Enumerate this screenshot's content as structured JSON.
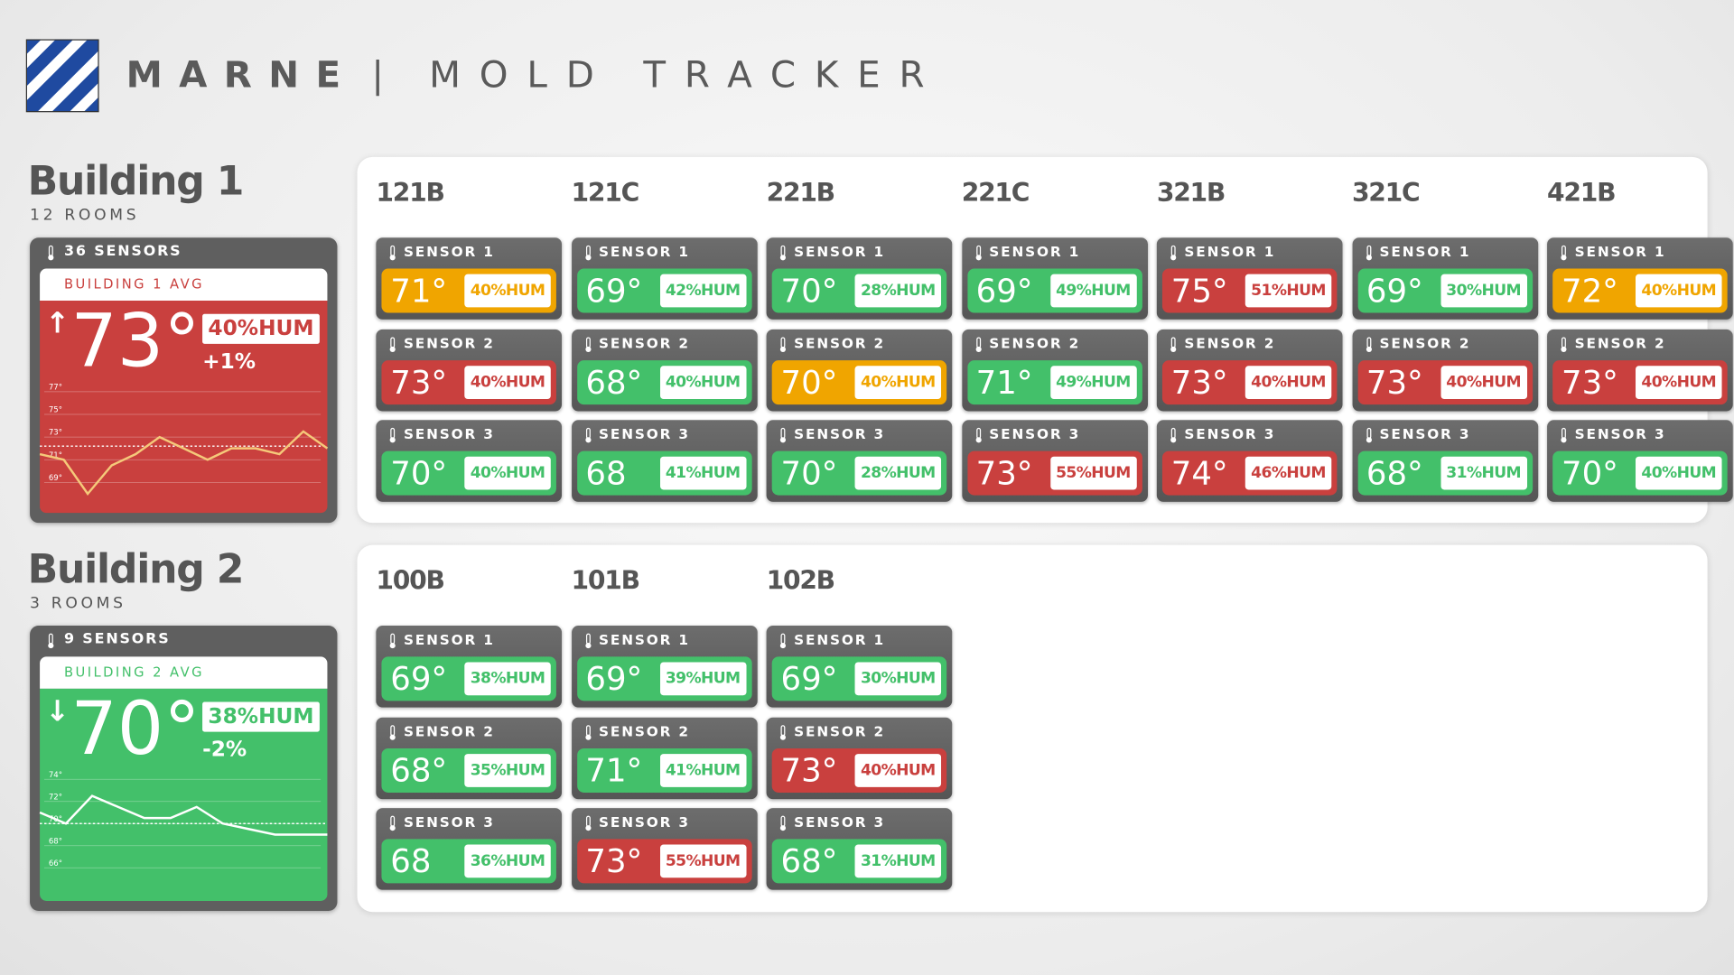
{
  "header": {
    "brand": "MARNE",
    "separator": "|",
    "title": "MOLD TRACKER"
  },
  "buildings": [
    {
      "name": "Building 1",
      "rooms_count": "12 ROOMS",
      "sensors_count": "36 SENSORS",
      "avg_label": "BUILDING 1 AVG",
      "color": "#c9403e",
      "arrow": "↑",
      "temp": "73°",
      "humidity": "40%HUM",
      "change": "+1%",
      "trend": {
        "ylim": [
          66.7,
          78.4
        ],
        "yticks": [
          {
            "value": 77,
            "label": "77°"
          },
          {
            "value": 75,
            "label": "75°"
          },
          {
            "value": 73,
            "label": "73°"
          },
          {
            "value": 71,
            "label": "71°"
          },
          {
            "value": 69,
            "label": "69°"
          }
        ],
        "reference": 72.2,
        "color": "#f5c97a",
        "values": [
          71.5,
          71,
          68,
          70.5,
          71.5,
          73,
          72,
          71,
          72,
          72,
          71.5,
          73.5,
          72
        ]
      },
      "rooms": [
        {
          "name": "121B",
          "sensors": [
            {
              "label": "SENSOR 1",
              "temp": "71°",
              "humidity": "40%HUM",
              "color": "#f0a500"
            },
            {
              "label": "SENSOR 2",
              "temp": "73°",
              "humidity": "40%HUM",
              "color": "#c9403e"
            },
            {
              "label": "SENSOR 3",
              "temp": "70°",
              "humidity": "40%HUM",
              "color": "#43c06a"
            }
          ]
        },
        {
          "name": "121C",
          "sensors": [
            {
              "label": "SENSOR 1",
              "temp": "69°",
              "humidity": "42%HUM",
              "color": "#43c06a"
            },
            {
              "label": "SENSOR 2",
              "temp": "68°",
              "humidity": "40%HUM",
              "color": "#43c06a"
            },
            {
              "label": "SENSOR 3",
              "temp": "68",
              "humidity": "41%HUM",
              "color": "#43c06a"
            }
          ]
        },
        {
          "name": "221B",
          "sensors": [
            {
              "label": "SENSOR 1",
              "temp": "70°",
              "humidity": "28%HUM",
              "color": "#43c06a"
            },
            {
              "label": "SENSOR 2",
              "temp": "70°",
              "humidity": "40%HUM",
              "color": "#f0a500"
            },
            {
              "label": "SENSOR 3",
              "temp": "70°",
              "humidity": "28%HUM",
              "color": "#43c06a"
            }
          ]
        },
        {
          "name": "221C",
          "sensors": [
            {
              "label": "SENSOR 1",
              "temp": "69°",
              "humidity": "49%HUM",
              "color": "#43c06a"
            },
            {
              "label": "SENSOR 2",
              "temp": "71°",
              "humidity": "49%HUM",
              "color": "#43c06a"
            },
            {
              "label": "SENSOR 3",
              "temp": "73°",
              "humidity": "55%HUM",
              "color": "#c9403e"
            }
          ]
        },
        {
          "name": "321B",
          "sensors": [
            {
              "label": "SENSOR 1",
              "temp": "75°",
              "humidity": "51%HUM",
              "color": "#c9403e"
            },
            {
              "label": "SENSOR 2",
              "temp": "73°",
              "humidity": "40%HUM",
              "color": "#c9403e"
            },
            {
              "label": "SENSOR 3",
              "temp": "74°",
              "humidity": "46%HUM",
              "color": "#c9403e"
            }
          ]
        },
        {
          "name": "321C",
          "sensors": [
            {
              "label": "SENSOR 1",
              "temp": "69°",
              "humidity": "30%HUM",
              "color": "#43c06a"
            },
            {
              "label": "SENSOR 2",
              "temp": "73°",
              "humidity": "40%HUM",
              "color": "#c9403e"
            },
            {
              "label": "SENSOR 3",
              "temp": "68°",
              "humidity": "31%HUM",
              "color": "#43c06a"
            }
          ]
        },
        {
          "name": "421B",
          "sensors": [
            {
              "label": "SENSOR 1",
              "temp": "72°",
              "humidity": "40%HUM",
              "color": "#f0a500"
            },
            {
              "label": "SENSOR 2",
              "temp": "73°",
              "humidity": "40%HUM",
              "color": "#c9403e"
            },
            {
              "label": "SENSOR 3",
              "temp": "70°",
              "humidity": "40%HUM",
              "color": "#43c06a"
            }
          ]
        }
      ]
    },
    {
      "name": "Building 2",
      "rooms_count": "3 ROOMS",
      "sensors_count": "9 SENSORS",
      "avg_label": "BUILDING 2 AVG",
      "color": "#43c06a",
      "arrow": "↓",
      "temp": "70°",
      "humidity": "38%HUM",
      "change": "-2%",
      "trend": {
        "ylim": [
          63.4,
          75.4
        ],
        "yticks": [
          {
            "value": 74,
            "label": "74°"
          },
          {
            "value": 72,
            "label": "72°"
          },
          {
            "value": 70,
            "label": "70°"
          },
          {
            "value": 68,
            "label": "68°"
          },
          {
            "value": 66,
            "label": "66°"
          }
        ],
        "reference": 70,
        "color": "#ffffff",
        "values": [
          71,
          70,
          72.5,
          71.5,
          70.5,
          70.5,
          71.5,
          70,
          69.5,
          69,
          69,
          69
        ]
      },
      "rooms": [
        {
          "name": "100B",
          "sensors": [
            {
              "label": "SENSOR 1",
              "temp": "69°",
              "humidity": "38%HUM",
              "color": "#43c06a"
            },
            {
              "label": "SENSOR 2",
              "temp": "68°",
              "humidity": "35%HUM",
              "color": "#43c06a"
            },
            {
              "label": "SENSOR 3",
              "temp": "68",
              "humidity": "36%HUM",
              "color": "#43c06a"
            }
          ]
        },
        {
          "name": "101B",
          "sensors": [
            {
              "label": "SENSOR 1",
              "temp": "69°",
              "humidity": "39%HUM",
              "color": "#43c06a"
            },
            {
              "label": "SENSOR 2",
              "temp": "71°",
              "humidity": "41%HUM",
              "color": "#43c06a"
            },
            {
              "label": "SENSOR 3",
              "temp": "73°",
              "humidity": "55%HUM",
              "color": "#c9403e"
            }
          ]
        },
        {
          "name": "102B",
          "sensors": [
            {
              "label": "SENSOR 1",
              "temp": "69°",
              "humidity": "30%HUM",
              "color": "#43c06a"
            },
            {
              "label": "SENSOR 2",
              "temp": "73°",
              "humidity": "40%HUM",
              "color": "#c9403e"
            },
            {
              "label": "SENSOR 3",
              "temp": "68°",
              "humidity": "31%HUM",
              "color": "#43c06a"
            }
          ]
        }
      ]
    }
  ]
}
